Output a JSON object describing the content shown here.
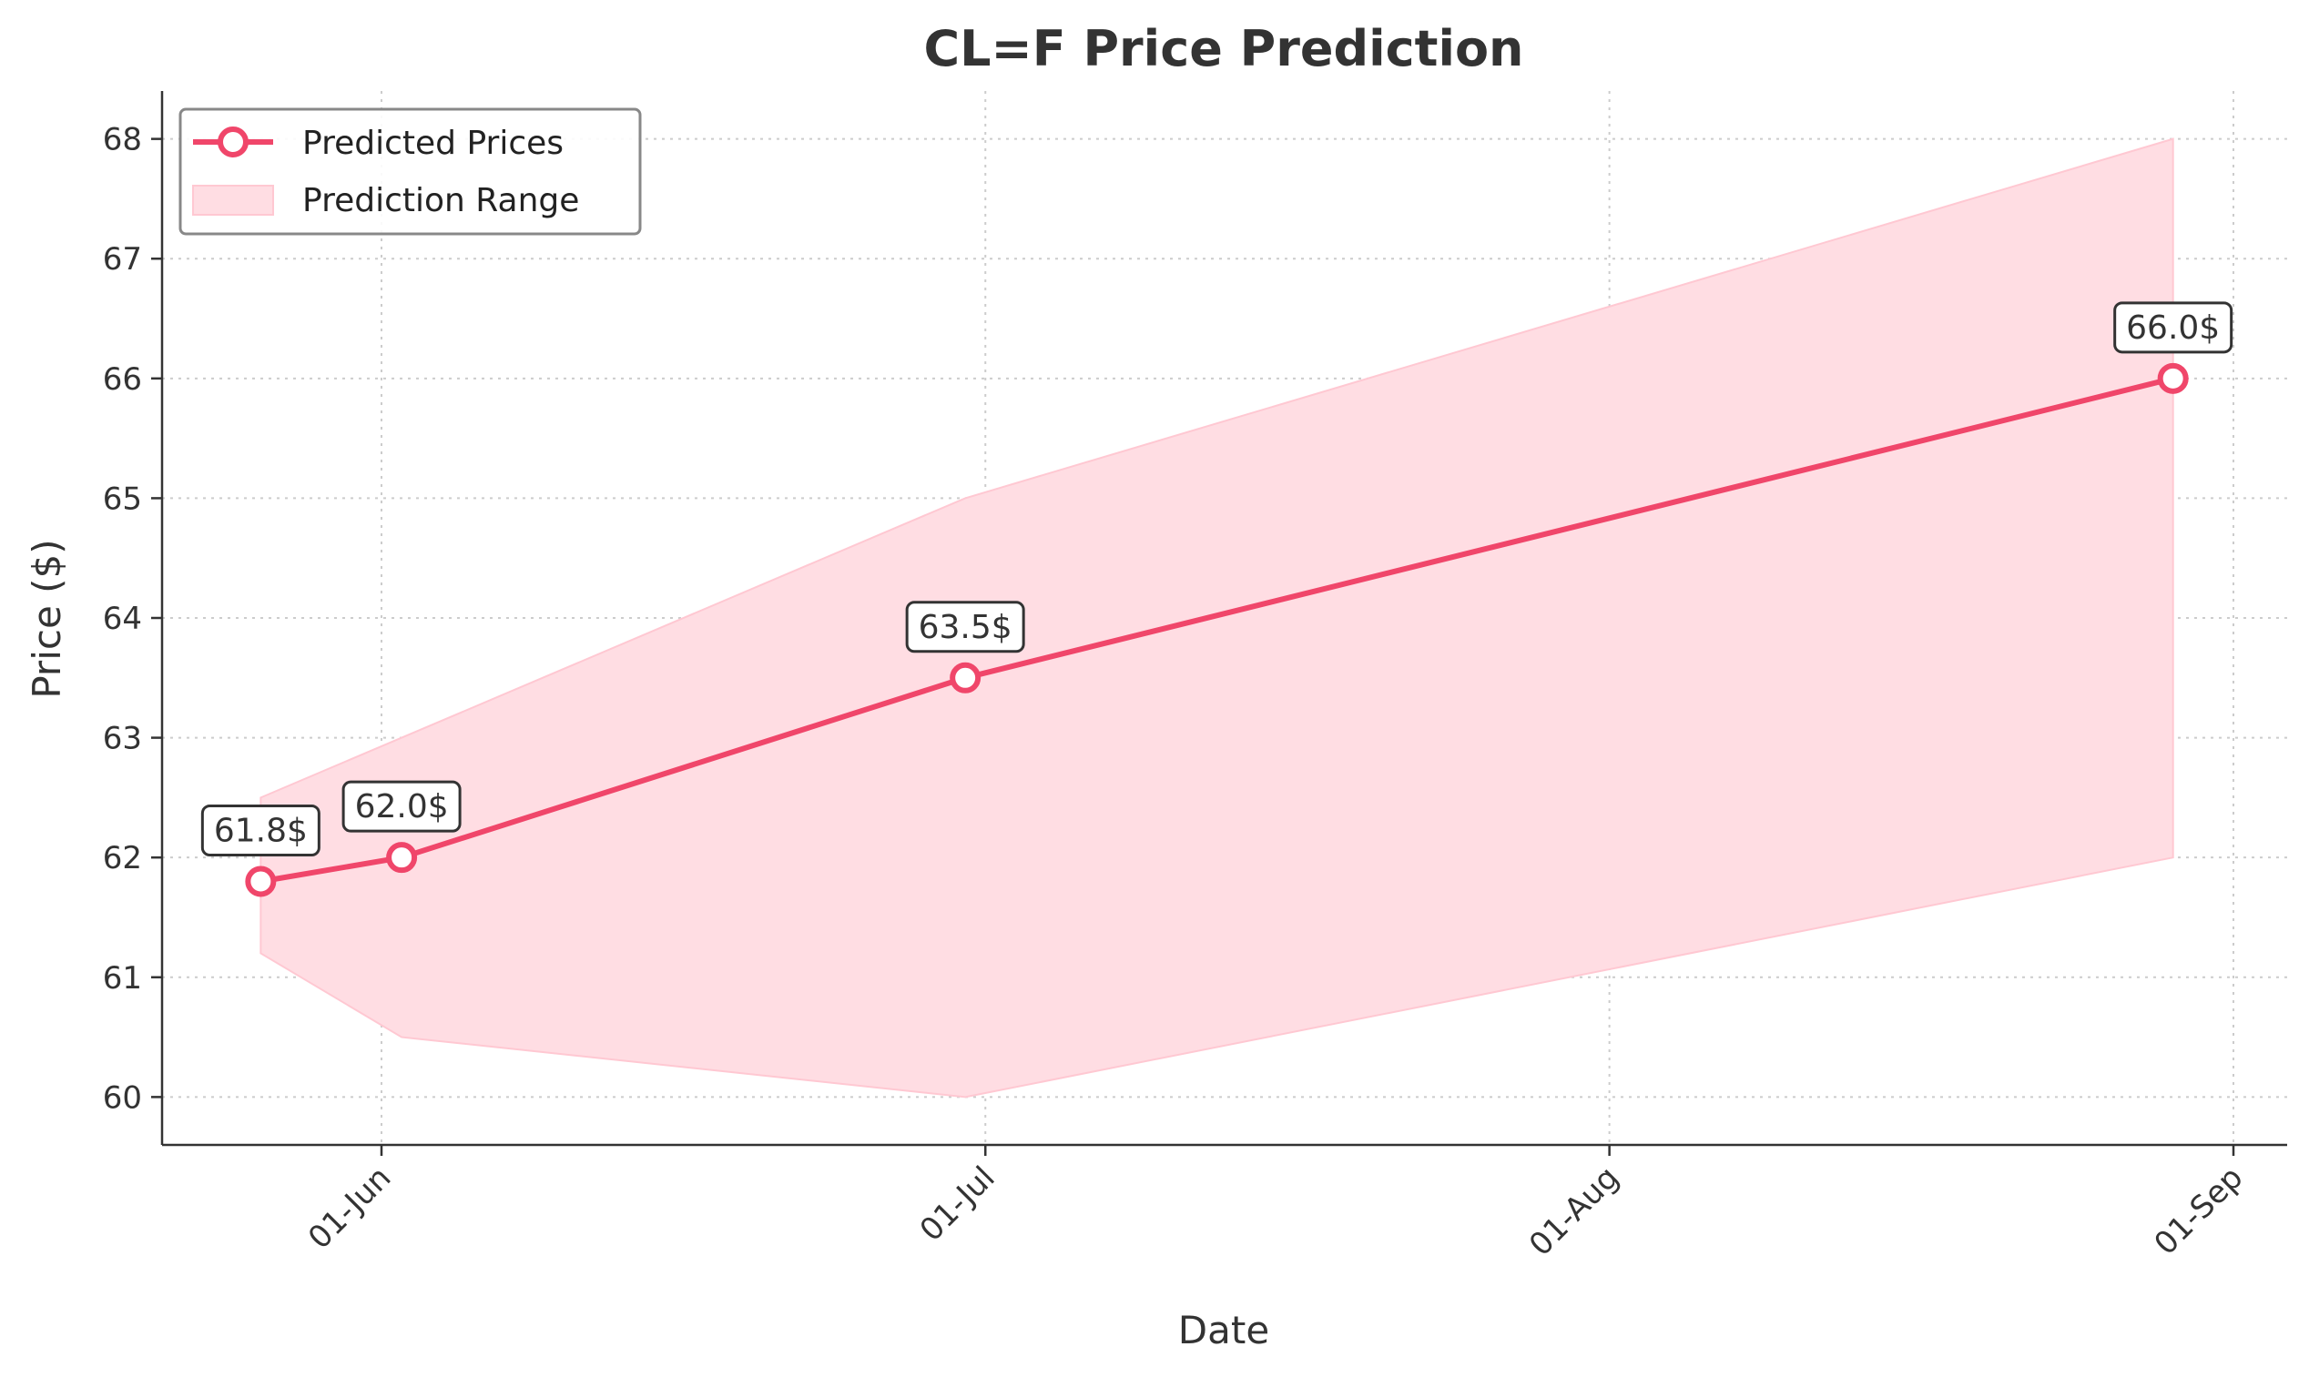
{
  "chart_data": {
    "type": "line",
    "title": "CL=F Price Prediction",
    "xlabel": "Date",
    "ylabel": "Price ($)",
    "x_ticks": [
      "01-Jun",
      "01-Jul",
      "01-Aug",
      "01-Sep"
    ],
    "y_ticks": [
      "60",
      "61",
      "62",
      "63",
      "64",
      "65",
      "66",
      "67",
      "68"
    ],
    "ylim": [
      59.6,
      68.4
    ],
    "grid": true,
    "legend_position": "top-left",
    "series": [
      {
        "name": "Predicted Prices",
        "color": "#f0466a",
        "points": [
          {
            "date": "2025-05-26",
            "value": 61.8,
            "label": "61.8$"
          },
          {
            "date": "2025-06-02",
            "value": 62.0,
            "label": "62.0$"
          },
          {
            "date": "2025-06-30",
            "value": 63.5,
            "label": "63.5$"
          },
          {
            "date": "2025-08-29",
            "value": 66.0,
            "label": "66.0$"
          }
        ]
      }
    ],
    "range": {
      "name": "Prediction Range",
      "color": "#ffdde3",
      "lower": [
        61.2,
        60.5,
        60.0,
        62.0
      ],
      "upper": [
        62.5,
        63.0,
        65.0,
        68.0
      ]
    }
  }
}
